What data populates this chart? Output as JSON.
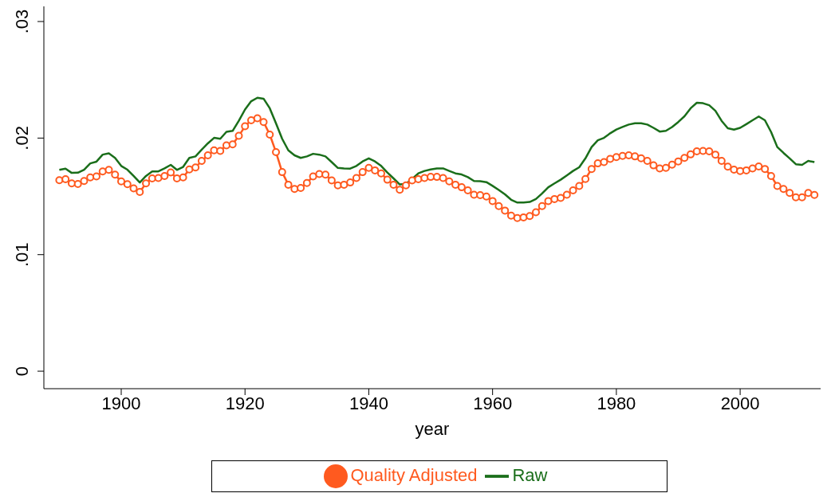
{
  "chart_data": {
    "type": "line",
    "xlabel": "year",
    "x": [
      1890,
      1891,
      1892,
      1893,
      1894,
      1895,
      1896,
      1897,
      1898,
      1899,
      1900,
      1901,
      1902,
      1903,
      1904,
      1905,
      1906,
      1907,
      1908,
      1909,
      1910,
      1911,
      1912,
      1913,
      1914,
      1915,
      1916,
      1917,
      1918,
      1919,
      1920,
      1921,
      1922,
      1923,
      1924,
      1925,
      1926,
      1927,
      1928,
      1929,
      1930,
      1931,
      1932,
      1933,
      1934,
      1935,
      1936,
      1937,
      1938,
      1939,
      1940,
      1941,
      1942,
      1943,
      1944,
      1945,
      1946,
      1947,
      1948,
      1949,
      1950,
      1951,
      1952,
      1953,
      1954,
      1955,
      1956,
      1957,
      1958,
      1959,
      1960,
      1961,
      1962,
      1963,
      1964,
      1965,
      1966,
      1967,
      1968,
      1969,
      1970,
      1971,
      1972,
      1973,
      1974,
      1975,
      1976,
      1977,
      1978,
      1979,
      1980,
      1981,
      1982,
      1983,
      1984,
      1985,
      1986,
      1987,
      1988,
      1989,
      1990,
      1991,
      1992,
      1993,
      1994,
      1995,
      1996,
      1997,
      1998,
      1999,
      2000,
      2001,
      2002,
      2003,
      2004,
      2005,
      2006,
      2007,
      2008,
      2009,
      2010,
      2011,
      2012
    ],
    "series": [
      {
        "name": "Raw",
        "color": "#1a6e1a",
        "marker": "none",
        "values": [
          0.01727,
          0.01738,
          0.01701,
          0.01703,
          0.01729,
          0.01783,
          0.01798,
          0.01858,
          0.01869,
          0.0183,
          0.01761,
          0.01729,
          0.01675,
          0.01619,
          0.01675,
          0.01714,
          0.01714,
          0.0174,
          0.0177,
          0.01727,
          0.01753,
          0.0183,
          0.01843,
          0.01901,
          0.01955,
          0.02002,
          0.01994,
          0.02054,
          0.02062,
          0.02148,
          0.02245,
          0.02316,
          0.02346,
          0.02338,
          0.02256,
          0.02127,
          0.01994,
          0.01895,
          0.01852,
          0.0183,
          0.01843,
          0.01865,
          0.01858,
          0.01843,
          0.01794,
          0.01744,
          0.0174,
          0.01738,
          0.01761,
          0.018,
          0.01826,
          0.018,
          0.01761,
          0.01705,
          0.01654,
          0.01602,
          0.01606,
          0.0165,
          0.01697,
          0.01718,
          0.01731,
          0.0174,
          0.0174,
          0.01718,
          0.01697,
          0.01688,
          0.01665,
          0.01632,
          0.0163,
          0.01622,
          0.0159,
          0.01555,
          0.01517,
          0.01471,
          0.01447,
          0.01447,
          0.01452,
          0.01477,
          0.01525,
          0.01578,
          0.01611,
          0.01643,
          0.0168,
          0.01718,
          0.0175,
          0.01826,
          0.01923,
          0.01981,
          0.02002,
          0.02041,
          0.02073,
          0.02095,
          0.02116,
          0.02127,
          0.02127,
          0.02116,
          0.02088,
          0.02056,
          0.02062,
          0.02095,
          0.02138,
          0.02187,
          0.02256,
          0.02303,
          0.02299,
          0.02282,
          0.02234,
          0.02148,
          0.02084,
          0.02073,
          0.02088,
          0.0212,
          0.02153,
          0.02185,
          0.02153,
          0.02052,
          0.01923,
          0.01873,
          0.01826,
          0.01776,
          0.0177,
          0.01804,
          0.01794
        ]
      },
      {
        "name": "Quality Adjusted",
        "color": "#ff5a1f",
        "marker": "circle",
        "values": [
          0.01639,
          0.01647,
          0.01611,
          0.01606,
          0.01632,
          0.01662,
          0.01671,
          0.01714,
          0.01727,
          0.01686,
          0.01628,
          0.01604,
          0.01568,
          0.01538,
          0.01611,
          0.01654,
          0.01658,
          0.01675,
          0.01705,
          0.01654,
          0.01662,
          0.01731,
          0.01748,
          0.01804,
          0.01852,
          0.01895,
          0.0189,
          0.01938,
          0.01946,
          0.02019,
          0.02101,
          0.02153,
          0.0217,
          0.02138,
          0.0203,
          0.0188,
          0.01708,
          0.016,
          0.01563,
          0.01572,
          0.01615,
          0.01671,
          0.01692,
          0.01686,
          0.01637,
          0.01594,
          0.016,
          0.01619,
          0.01658,
          0.01708,
          0.01744,
          0.01723,
          0.01697,
          0.01643,
          0.016,
          0.01557,
          0.01594,
          0.01637,
          0.01647,
          0.01658,
          0.01667,
          0.01667,
          0.01658,
          0.01628,
          0.016,
          0.01578,
          0.01551,
          0.01514,
          0.0151,
          0.01499,
          0.0146,
          0.01417,
          0.01378,
          0.01335,
          0.01314,
          0.0132,
          0.01331,
          0.01363,
          0.01417,
          0.0146,
          0.01477,
          0.01486,
          0.01514,
          0.01551,
          0.01589,
          0.01649,
          0.01735,
          0.01783,
          0.01794,
          0.01822,
          0.01837,
          0.01847,
          0.01852,
          0.01843,
          0.01826,
          0.01804,
          0.01766,
          0.0174,
          0.01744,
          0.01772,
          0.018,
          0.0183,
          0.0186,
          0.01886,
          0.0189,
          0.01886,
          0.01858,
          0.01804,
          0.01755,
          0.01729,
          0.01718,
          0.01723,
          0.0174,
          0.01757,
          0.01735,
          0.01675,
          0.01589,
          0.01563,
          0.01529,
          0.01492,
          0.01492,
          0.01529,
          0.01512
        ]
      }
    ],
    "xlim": [
      1887.5,
      2013
    ],
    "xticks": [
      1900,
      1920,
      1940,
      1960,
      1980,
      2000
    ],
    "ylim": [
      -0.0015,
      0.0313
    ],
    "yticks": [
      {
        "value": 0,
        "label": "0"
      },
      {
        "value": 0.01,
        "label": ".01"
      },
      {
        "value": 0.02,
        "label": ".02"
      },
      {
        "value": 0.03,
        "label": ".03"
      }
    ],
    "grid": false,
    "legend": "bottom",
    "line_style": "solid"
  }
}
